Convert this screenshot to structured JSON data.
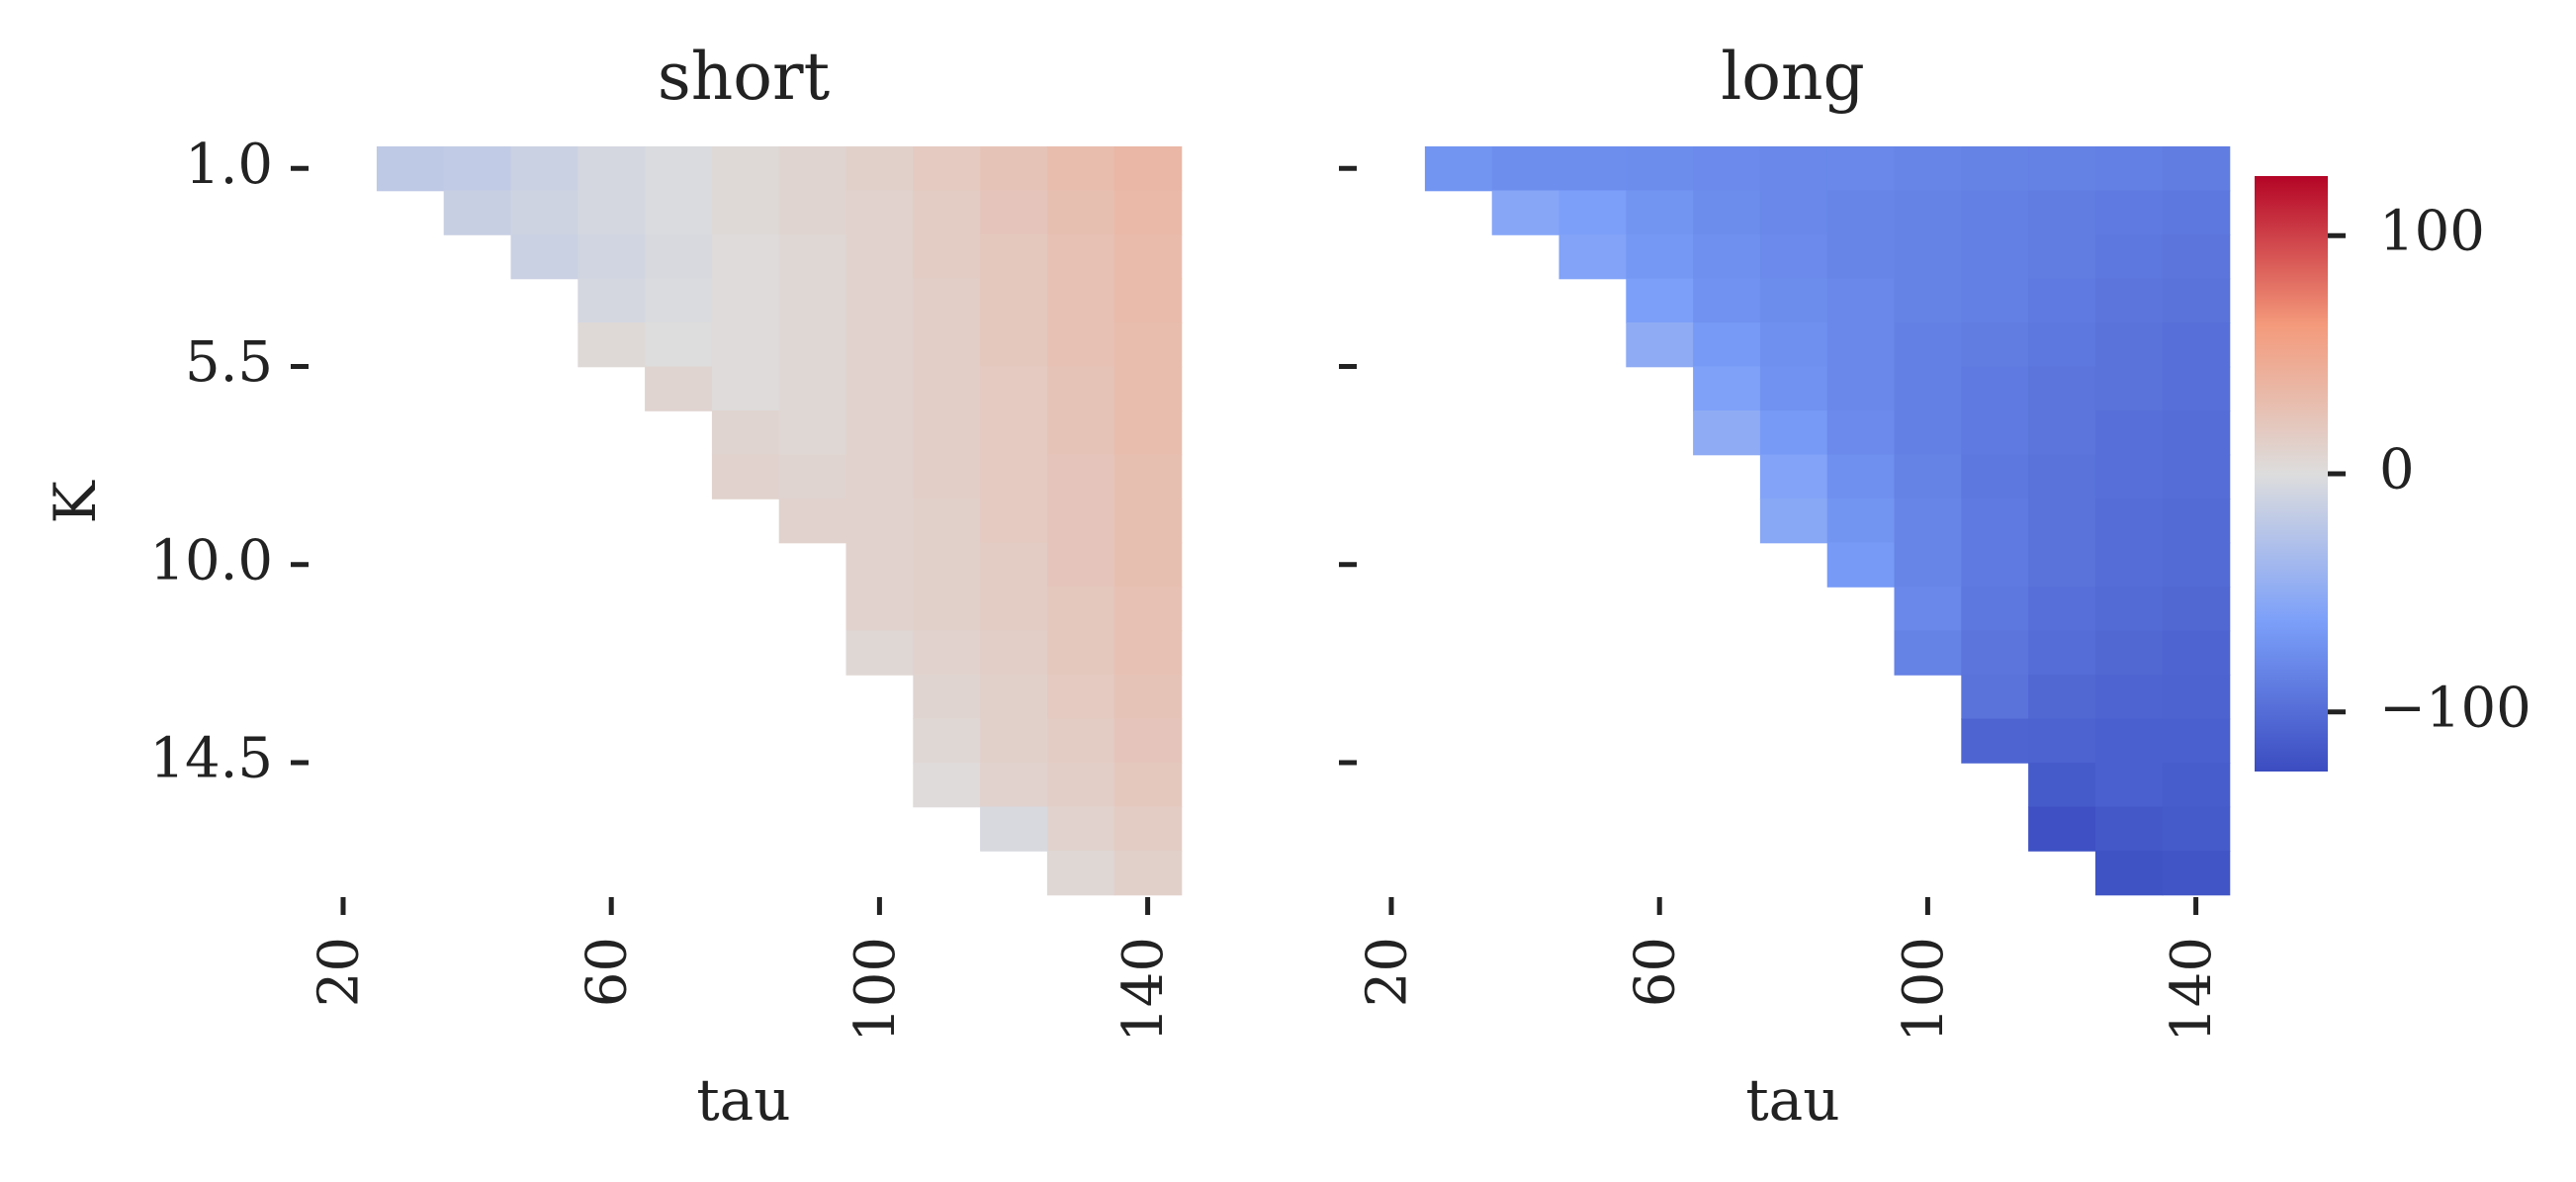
{
  "chart_data": [
    {
      "type": "heatmap",
      "title": "short",
      "xlabel": "tau",
      "ylabel": "K",
      "x_tick_labels": [
        "20",
        "60",
        "100",
        "140"
      ],
      "y_tick_labels": [
        "1.0",
        "5.5",
        "10.0",
        "14.5"
      ],
      "x_tick_values": [
        20,
        60,
        100,
        140
      ],
      "y_tick_values": [
        1.0,
        5.5,
        10.0,
        14.5
      ],
      "x_columns": [
        30,
        40,
        50,
        60,
        70,
        80,
        90,
        100,
        110,
        120,
        130,
        140
      ],
      "K_rows": [
        1.0,
        2.0,
        3.0,
        4.0,
        5.0,
        6.0,
        7.0,
        8.0,
        9.0,
        10.0,
        11.0,
        12.0,
        13.0,
        14.0,
        15.0,
        16.0,
        17.0
      ],
      "values": [
        [
          -20,
          -18,
          -12,
          -6,
          -2,
          4,
          8,
          12,
          18,
          24,
          30,
          36
        ],
        [
          null,
          -14,
          -10,
          -6,
          -2,
          4,
          8,
          10,
          16,
          22,
          28,
          34
        ],
        [
          null,
          null,
          -12,
          -8,
          -4,
          2,
          6,
          10,
          16,
          20,
          26,
          32
        ],
        [
          null,
          null,
          null,
          -6,
          -2,
          2,
          6,
          10,
          14,
          20,
          26,
          32
        ],
        [
          null,
          null,
          null,
          4,
          0,
          2,
          6,
          10,
          14,
          20,
          26,
          30
        ],
        [
          null,
          null,
          null,
          null,
          8,
          2,
          6,
          10,
          14,
          18,
          24,
          30
        ],
        [
          null,
          null,
          null,
          null,
          null,
          8,
          6,
          10,
          14,
          18,
          24,
          30
        ],
        [
          null,
          null,
          null,
          null,
          null,
          10,
          8,
          10,
          14,
          18,
          22,
          28
        ],
        [
          null,
          null,
          null,
          null,
          null,
          null,
          10,
          10,
          12,
          18,
          22,
          28
        ],
        [
          null,
          null,
          null,
          null,
          null,
          null,
          null,
          10,
          12,
          16,
          22,
          28
        ],
        [
          null,
          null,
          null,
          null,
          null,
          null,
          null,
          10,
          12,
          16,
          20,
          26
        ],
        [
          null,
          null,
          null,
          null,
          null,
          null,
          null,
          6,
          10,
          14,
          20,
          26
        ],
        [
          null,
          null,
          null,
          null,
          null,
          null,
          null,
          null,
          8,
          12,
          18,
          24
        ],
        [
          null,
          null,
          null,
          null,
          null,
          null,
          null,
          null,
          6,
          12,
          16,
          22
        ],
        [
          null,
          null,
          null,
          null,
          null,
          null,
          null,
          null,
          2,
          10,
          14,
          20
        ],
        [
          null,
          null,
          null,
          null,
          null,
          null,
          null,
          null,
          null,
          -4,
          10,
          16
        ],
        [
          null,
          null,
          null,
          null,
          null,
          null,
          null,
          null,
          null,
          null,
          6,
          12
        ]
      ]
    },
    {
      "type": "heatmap",
      "title": "long",
      "xlabel": "tau",
      "ylabel": "",
      "x_tick_labels": [
        "20",
        "60",
        "100",
        "140"
      ],
      "x_tick_values": [
        20,
        60,
        100,
        140
      ],
      "y_tick_values": [
        1.0,
        5.5,
        10.0,
        14.5
      ],
      "x_columns": [
        30,
        40,
        50,
        60,
        70,
        80,
        90,
        100,
        110,
        120,
        130,
        140
      ],
      "K_rows": [
        1.0,
        2.0,
        3.0,
        4.0,
        5.0,
        6.0,
        7.0,
        8.0,
        9.0,
        10.0,
        11.0,
        12.0,
        13.0,
        14.0,
        15.0,
        16.0,
        17.0
      ],
      "values": [
        [
          -70,
          -75,
          -75,
          -76,
          -78,
          -80,
          -80,
          -82,
          -84,
          -85,
          -86,
          -88
        ],
        [
          null,
          -55,
          -62,
          -70,
          -76,
          -80,
          -82,
          -84,
          -86,
          -88,
          -90,
          -92
        ],
        [
          null,
          null,
          -58,
          -68,
          -74,
          -78,
          -82,
          -84,
          -86,
          -88,
          -92,
          -94
        ],
        [
          null,
          null,
          null,
          -62,
          -72,
          -76,
          -80,
          -84,
          -86,
          -90,
          -94,
          -96
        ],
        [
          null,
          null,
          null,
          -50,
          -66,
          -74,
          -80,
          -86,
          -88,
          -92,
          -96,
          -98
        ],
        [
          null,
          null,
          null,
          null,
          -60,
          -72,
          -80,
          -86,
          -90,
          -94,
          -96,
          -98
        ],
        [
          null,
          null,
          null,
          null,
          -50,
          -66,
          -78,
          -86,
          -90,
          -94,
          -98,
          -100
        ],
        [
          null,
          null,
          null,
          null,
          null,
          -58,
          -74,
          -84,
          -92,
          -96,
          -98,
          -100
        ],
        [
          null,
          null,
          null,
          null,
          null,
          -54,
          -70,
          -82,
          -90,
          -96,
          -100,
          -102
        ],
        [
          null,
          null,
          null,
          null,
          null,
          null,
          -66,
          -82,
          -90,
          -96,
          -100,
          -102
        ],
        [
          null,
          null,
          null,
          null,
          null,
          null,
          null,
          -80,
          -92,
          -98,
          -102,
          -104
        ],
        [
          null,
          null,
          null,
          null,
          null,
          null,
          null,
          -84,
          -94,
          -100,
          -104,
          -106
        ],
        [
          null,
          null,
          null,
          null,
          null,
          null,
          null,
          null,
          -96,
          -104,
          -106,
          -108
        ],
        [
          null,
          null,
          null,
          null,
          null,
          null,
          null,
          null,
          -106,
          -108,
          -110,
          -110
        ],
        [
          null,
          null,
          null,
          null,
          null,
          null,
          null,
          null,
          null,
          -114,
          -110,
          -112
        ],
        [
          null,
          null,
          null,
          null,
          null,
          null,
          null,
          null,
          null,
          -122,
          -116,
          -114
        ],
        [
          null,
          null,
          null,
          null,
          null,
          null,
          null,
          null,
          null,
          null,
          -120,
          -118
        ]
      ]
    }
  ],
  "colorbar": {
    "tick_labels": [
      "100",
      "0",
      "−100"
    ],
    "tick_values": [
      100,
      0,
      -100
    ],
    "range": [
      -125,
      125
    ],
    "colormap": "coolwarm",
    "colors": {
      "low": "#3b4cc0",
      "mid": "#dddddd",
      "high": "#b40426"
    }
  },
  "colors": {
    "text": "#222222",
    "background": "#ffffff"
  }
}
